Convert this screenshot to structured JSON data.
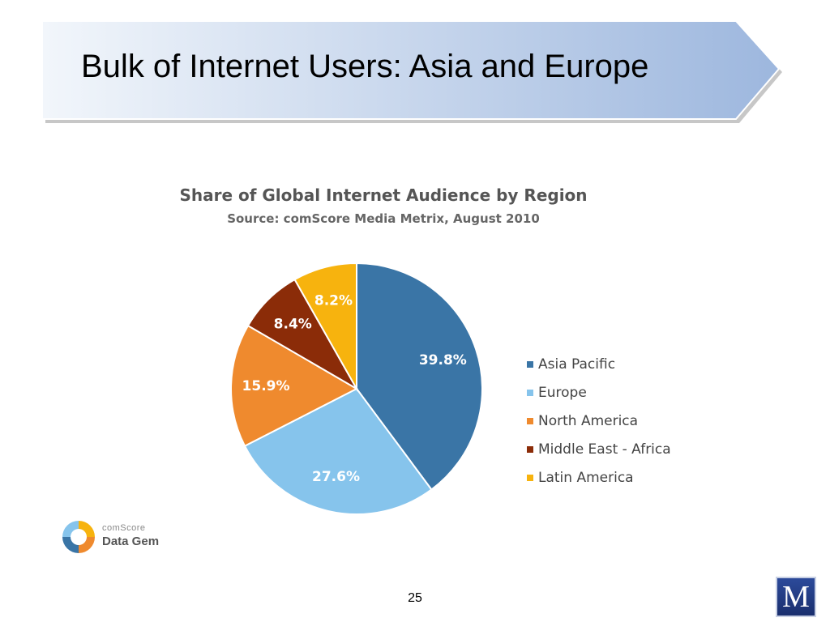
{
  "slide": {
    "title": "Bulk of Internet Users: Asia and Europe",
    "page_number": "25"
  },
  "chart_data": {
    "type": "pie",
    "title": "Share of Global Internet Audience by Region",
    "subtitle": "Source: comScore Media Metrix, August 2010",
    "legend_position": "right",
    "slices": [
      {
        "name": "Asia Pacific",
        "value": 39.8,
        "label": "39.8%",
        "color": "#3a75a6"
      },
      {
        "name": "Europe",
        "value": 27.6,
        "label": "27.6%",
        "color": "#86c4ec"
      },
      {
        "name": "North America",
        "value": 15.9,
        "label": "15.9%",
        "color": "#ef8a2e"
      },
      {
        "name": "Middle East - Africa",
        "value": 8.4,
        "label": "8.4%",
        "color": "#8b2c08"
      },
      {
        "name": "Latin America",
        "value": 8.2,
        "label": "8.2%",
        "color": "#f7b30e"
      }
    ]
  },
  "logos": {
    "comscore_brand": "comScore",
    "comscore_product": "Data Gem",
    "m_logo": "M"
  },
  "colors": {
    "banner_light": "#eef3fa",
    "banner_dark": "#9fb8df",
    "label_text": "#ffffff"
  }
}
